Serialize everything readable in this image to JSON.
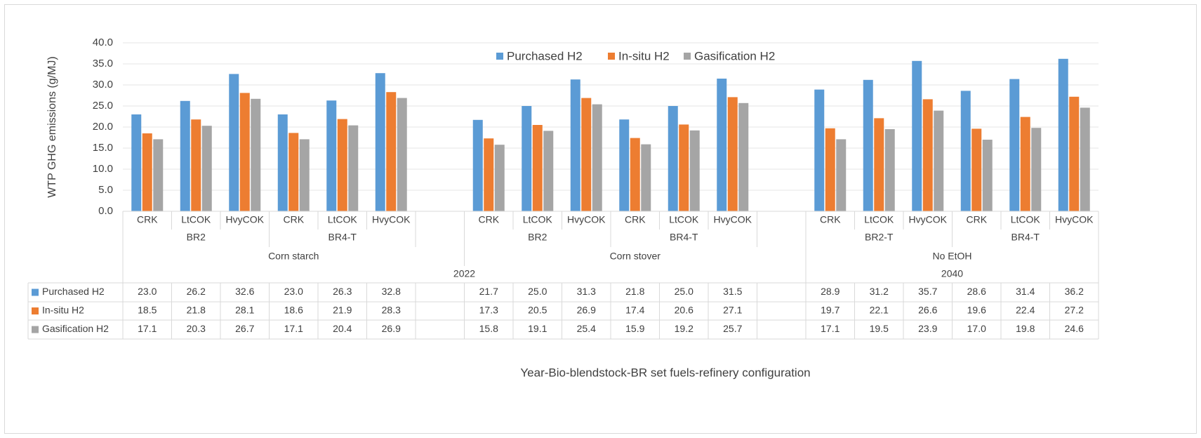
{
  "chart_data": {
    "type": "bar",
    "y_label": "WTP GHG emissions (g/MJ)",
    "x_label": "Year-Bio-blendstock-BR set fuels-refinery configuration",
    "categories": [
      [
        "2022",
        "Corn starch",
        "BR2",
        "CRK"
      ],
      [
        "2022",
        "Corn starch",
        "BR2",
        "LtCOK"
      ],
      [
        "2022",
        "Corn starch",
        "BR2",
        "HvyCOK"
      ],
      [
        "2022",
        "Corn starch",
        "BR4-T",
        "CRK"
      ],
      [
        "2022",
        "Corn starch",
        "BR4-T",
        "LtCOK"
      ],
      [
        "2022",
        "Corn starch",
        "BR4-T",
        "HvyCOK"
      ],
      [
        "2022",
        "Corn starch",
        null,
        null
      ],
      [
        "2022",
        "Corn stover",
        "BR2",
        "CRK"
      ],
      [
        "2022",
        "Corn stover",
        "BR2",
        "LtCOK"
      ],
      [
        "2022",
        "Corn stover",
        "BR2",
        "HvyCOK"
      ],
      [
        "2022",
        "Corn stover",
        "BR4-T",
        "CRK"
      ],
      [
        "2022",
        "Corn stover",
        "BR4-T",
        "LtCOK"
      ],
      [
        "2022",
        "Corn stover",
        "BR4-T",
        "HvyCOK"
      ],
      [
        "2022",
        "Corn stover",
        null,
        null
      ],
      [
        "2040",
        "No EtOH",
        "BR2-T",
        "CRK"
      ],
      [
        "2040",
        "No EtOH",
        "BR2-T",
        "LtCOK"
      ],
      [
        "2040",
        "No EtOH",
        "BR2-T",
        "HvyCOK"
      ],
      [
        "2040",
        "No EtOH",
        "BR4-T",
        "CRK"
      ],
      [
        "2040",
        "No EtOH",
        "BR4-T",
        "LtCOK"
      ],
      [
        "2040",
        "No EtOH",
        "BR4-T",
        "HvyCOK"
      ]
    ],
    "series": [
      {
        "name": "Purchased H2",
        "color": "#5b9bd5",
        "values": [
          23.0,
          26.2,
          32.6,
          23.0,
          26.3,
          32.8,
          null,
          21.7,
          25.0,
          31.3,
          21.8,
          25.0,
          31.5,
          null,
          28.9,
          31.2,
          35.7,
          28.6,
          31.4,
          36.2
        ],
        "value_labels": [
          "23.0",
          "26.2",
          "32.6",
          "23.0",
          "26.3",
          "32.8",
          null,
          "21.7",
          "25.0",
          "31.3",
          "21.8",
          "25.0",
          "31.5",
          null,
          "28.9",
          "31.2",
          "35.7",
          "28.6",
          "31.4",
          "36.2"
        ]
      },
      {
        "name": "In-situ H2",
        "color": "#ed7d31",
        "values": [
          18.5,
          21.8,
          28.1,
          18.6,
          21.9,
          28.3,
          null,
          17.3,
          20.5,
          26.9,
          17.4,
          20.6,
          27.1,
          null,
          19.7,
          22.1,
          26.6,
          19.6,
          22.4,
          27.2
        ],
        "value_labels": [
          "18.5",
          "21.8",
          "28.1",
          "18.6",
          "21.9",
          "28.3",
          null,
          "17.3",
          "20.5",
          "26.9",
          "17.4",
          "20.6",
          "27.1",
          null,
          "19.7",
          "22.1",
          "26.6",
          "19.6",
          "22.4",
          "27.2"
        ]
      },
      {
        "name": "Gasification H2",
        "color": "#a5a5a5",
        "values": [
          17.1,
          20.3,
          26.7,
          17.1,
          20.4,
          26.9,
          null,
          15.8,
          19.1,
          25.4,
          15.9,
          19.2,
          25.7,
          null,
          17.1,
          19.5,
          23.9,
          17.0,
          19.8,
          24.6
        ],
        "value_labels": [
          "17.1",
          "20.3",
          "26.7",
          "17.1",
          "20.4",
          "26.9",
          null,
          "15.8",
          "19.1",
          "25.4",
          "15.9",
          "19.2",
          "25.7",
          null,
          "17.1",
          "19.5",
          "23.9",
          "17.0",
          "19.8",
          "24.6"
        ]
      }
    ],
    "ylim": [
      0,
      40
    ],
    "yticks": [
      {
        "value": 0,
        "label": "0.0"
      },
      {
        "value": 5,
        "label": "5.0"
      },
      {
        "value": 10,
        "label": "10.0"
      },
      {
        "value": 15,
        "label": "15.0"
      },
      {
        "value": 20,
        "label": "20.0"
      },
      {
        "value": 25,
        "label": "25.0"
      },
      {
        "value": 30,
        "label": "30.0"
      },
      {
        "value": 35,
        "label": "35.0"
      },
      {
        "value": 40,
        "label": "40.0"
      }
    ],
    "grid": true,
    "legend": "top",
    "data_table": true
  }
}
